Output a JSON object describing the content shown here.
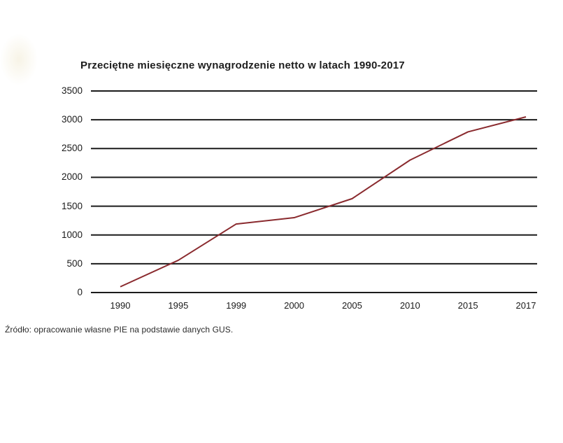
{
  "page": {
    "source_note": "Źródło: opracowanie własne PIE na podstawie danych GUS."
  },
  "chart_data": {
    "type": "line",
    "title": "Przeciętne miesięczne wynagrodzenie netto w latach 1990-2017",
    "categories": [
      "1990",
      "1995",
      "1999",
      "2000",
      "2005",
      "2010",
      "2015",
      "2017"
    ],
    "series": [
      {
        "values": [
          100,
          560,
          1190,
          1300,
          1630,
          2300,
          2790,
          3050
        ]
      }
    ],
    "ylim": [
      0,
      3500
    ],
    "ytick_interval": 500,
    "ytick_labels": [
      "0",
      "500",
      "1000",
      "1500",
      "2000",
      "2500",
      "3000",
      "3500"
    ],
    "xlabel": "",
    "ylabel": "",
    "grid": "horizontal gridlines on",
    "legend_position": "none",
    "line_color": "#8a2a2e",
    "gridline_color": "#1b1b1b",
    "text_color": "#1e1e1e",
    "background_color": "#ffffff"
  }
}
